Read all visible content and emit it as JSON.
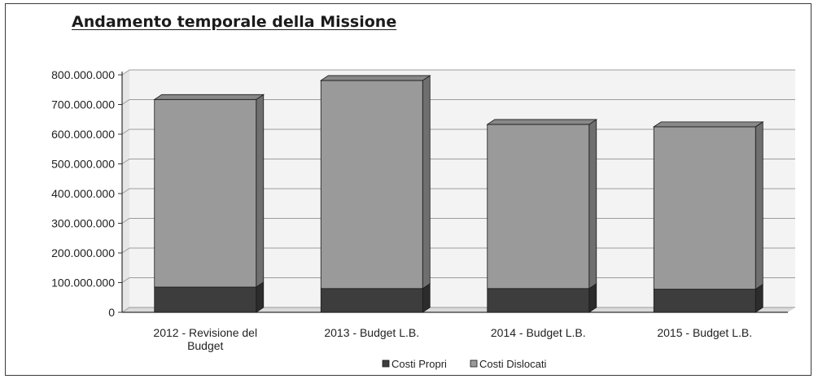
{
  "chart_data": {
    "type": "bar",
    "stacked": true,
    "three_d": true,
    "title": "Andamento temporale della Missione",
    "categories": [
      "2012 - Revisione del Budget",
      "2013 - Budget L.B.",
      "2014 - Budget L.B.",
      "2015 - Budget L.B."
    ],
    "category_lines": [
      [
        "2012 - Revisione del",
        "Budget"
      ],
      [
        "2013 - Budget L.B."
      ],
      [
        "2014 - Budget L.B."
      ],
      [
        "2015 - Budget L.B."
      ]
    ],
    "series": [
      {
        "name": "Costi Propri",
        "values": [
          85000000,
          80000000,
          80000000,
          78000000
        ],
        "color": "#3d3d3d"
      },
      {
        "name": "Costi Dislocati",
        "values": [
          632000000,
          701000000,
          553000000,
          547000000
        ],
        "color": "#9a9a9a"
      }
    ],
    "ylim": [
      0,
      800000000
    ],
    "yticks": [
      0,
      100000000,
      200000000,
      300000000,
      400000000,
      500000000,
      600000000,
      700000000,
      800000000
    ],
    "ytick_labels": [
      "0",
      "100.000.000",
      "200.000.000",
      "300.000.000",
      "400.000.000",
      "500.000.000",
      "600.000.000",
      "700.000.000",
      "800.000.000"
    ],
    "grid": true,
    "legend_position": "bottom"
  }
}
